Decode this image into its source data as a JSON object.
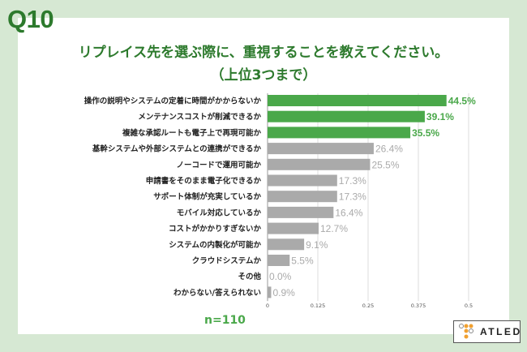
{
  "question_number": "Q10",
  "title_line1": "リプレイス先を選ぶ際に、重視することを教えてください。",
  "title_line2": "（上位3つまで）",
  "sample_size": "n=110",
  "logo_text": "ATLED",
  "colors": {
    "highlight": "#4aa84a",
    "other": "#aaaaaa",
    "title": "#2d7a2d",
    "background": "#d6e8d3"
  },
  "chart_data": {
    "type": "bar",
    "orientation": "horizontal",
    "categories": [
      "操作の説明やシステムの定着に時間がかからないか",
      "メンテナンスコストが削減できるか",
      "複雑な承認ルートも電子上で再現可能か",
      "基幹システムや外部システムとの連携ができるか",
      "ノーコードで運用可能か",
      "申請書をそのまま電子化できるか",
      "サポート体制が充実しているか",
      "モバイル対応しているか",
      "コストがかかりすぎないか",
      "システムの内製化が可能か",
      "クラウドシステムか",
      "その他",
      "わからない/答えられない"
    ],
    "values": [
      0.445,
      0.391,
      0.355,
      0.264,
      0.255,
      0.173,
      0.173,
      0.164,
      0.127,
      0.091,
      0.055,
      0.0,
      0.009
    ],
    "data_labels": [
      "44.5%",
      "39.1%",
      "35.5%",
      "26.4%",
      "25.5%",
      "17.3%",
      "17.3%",
      "16.4%",
      "12.7%",
      "9.1%",
      "5.5%",
      "0.0%",
      "0.9%"
    ],
    "highlighted": [
      true,
      true,
      true,
      false,
      false,
      false,
      false,
      false,
      false,
      false,
      false,
      false,
      false
    ],
    "xlim": [
      0,
      0.5
    ],
    "xticks": [
      "0",
      "0.125",
      "0.25",
      "0.375",
      "0.5"
    ],
    "grid": true
  }
}
